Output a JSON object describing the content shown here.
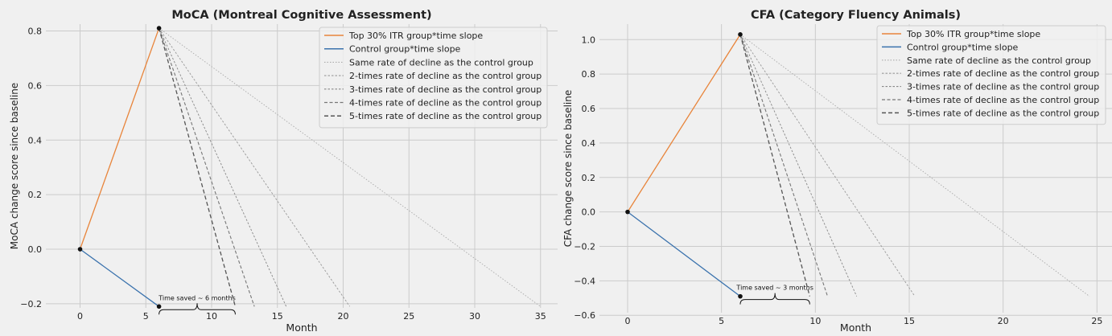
{
  "chart_data": [
    {
      "type": "line",
      "title": "MoCA (Montreal Cognitive Assessment)",
      "xlabel": "Month",
      "ylabel": "MoCA change score since baseline",
      "xlim": [
        -2.6,
        36.3
      ],
      "ylim": [
        -0.215,
        0.825
      ],
      "xticks": [
        0,
        5,
        10,
        15,
        20,
        25,
        30,
        35
      ],
      "xtick_labels": [
        "0",
        "5",
        "10",
        "15",
        "20",
        "25",
        "30",
        "35"
      ],
      "yticks": [
        -0.2,
        0.0,
        0.2,
        0.4,
        0.6,
        0.8
      ],
      "ytick_labels": [
        "−0.2",
        "0.0",
        "0.2",
        "0.4",
        "0.6",
        "0.8"
      ],
      "grid": true,
      "legend_position": "top-right",
      "series": [
        {
          "name": "Top 30% ITR group*time slope",
          "color": "#e8843a",
          "style": "solid",
          "x": [
            0,
            6
          ],
          "y": [
            0,
            0.81
          ]
        },
        {
          "name": "Control group*time slope",
          "color": "#3a72ad",
          "style": "solid",
          "x": [
            0,
            6
          ],
          "y": [
            0,
            -0.21
          ]
        },
        {
          "name": "Same rate of decline as the control group",
          "color": "#aaaaaa",
          "style": "dotted",
          "x": [
            6,
            35
          ],
          "y": [
            0.81,
            -0.21
          ]
        },
        {
          "name": "2-times rate of decline as the control group",
          "color": "#999999",
          "style": "dashed-fine",
          "x": [
            6,
            20.5
          ],
          "y": [
            0.81,
            -0.21
          ]
        },
        {
          "name": "3-times rate of decline as the control group",
          "color": "#888888",
          "style": "dashed-fine",
          "x": [
            6,
            15.67
          ],
          "y": [
            0.81,
            -0.21
          ]
        },
        {
          "name": "4-times rate of decline as the control group",
          "color": "#777777",
          "style": "dashed",
          "x": [
            6,
            13.25
          ],
          "y": [
            0.81,
            -0.21
          ]
        },
        {
          "name": "5-times rate of decline as the control group",
          "color": "#555555",
          "style": "dashed-heavy",
          "x": [
            6,
            11.8
          ],
          "y": [
            0.81,
            -0.21
          ]
        }
      ],
      "points": [
        {
          "x": 0,
          "y": 0
        },
        {
          "x": 6,
          "y": 0.81
        },
        {
          "x": 6,
          "y": -0.21
        }
      ],
      "annotation": {
        "text": "Time saved ~ 6 months",
        "x_start": 6,
        "x_end": 11.8
      }
    },
    {
      "type": "line",
      "title": "CFA (Category Fluency Animals)",
      "xlabel": "Month",
      "ylabel": "CFA change score since baseline",
      "xlim": [
        -1.5,
        25.8
      ],
      "ylim": [
        -0.585,
        1.09
      ],
      "xticks": [
        0,
        5,
        10,
        15,
        20,
        25
      ],
      "xtick_labels": [
        "0",
        "5",
        "10",
        "15",
        "20",
        "25"
      ],
      "yticks": [
        -0.6,
        -0.4,
        -0.2,
        0.0,
        0.2,
        0.4,
        0.6,
        0.8,
        1.0
      ],
      "ytick_labels": [
        "−0.6",
        "−0.4",
        "−0.2",
        "0.0",
        "0.2",
        "0.4",
        "0.6",
        "0.8",
        "1.0"
      ],
      "grid": true,
      "legend_position": "top-right",
      "series": [
        {
          "name": "Top 30% ITR group*time slope",
          "color": "#e8843a",
          "style": "solid",
          "x": [
            0,
            6
          ],
          "y": [
            0,
            1.03
          ]
        },
        {
          "name": "Control group*time slope",
          "color": "#3a72ad",
          "style": "solid",
          "x": [
            0,
            6
          ],
          "y": [
            0,
            -0.49
          ]
        },
        {
          "name": "Same rate of decline as the control group",
          "color": "#aaaaaa",
          "style": "dotted",
          "x": [
            6,
            24.6
          ],
          "y": [
            1.03,
            -0.49
          ]
        },
        {
          "name": "2-times rate of decline as the control group",
          "color": "#999999",
          "style": "dashed-fine",
          "x": [
            6,
            15.3
          ],
          "y": [
            1.03,
            -0.49
          ]
        },
        {
          "name": "3-times rate of decline as the control group",
          "color": "#888888",
          "style": "dashed-fine",
          "x": [
            6,
            12.2
          ],
          "y": [
            1.03,
            -0.49
          ]
        },
        {
          "name": "4-times rate of decline as the control group",
          "color": "#777777",
          "style": "dashed",
          "x": [
            6,
            10.65
          ],
          "y": [
            1.03,
            -0.49
          ]
        },
        {
          "name": "5-times rate of decline as the control group",
          "color": "#555555",
          "style": "dashed-heavy",
          "x": [
            6,
            9.7
          ],
          "y": [
            1.03,
            -0.49
          ]
        }
      ],
      "points": [
        {
          "x": 0,
          "y": 0
        },
        {
          "x": 6,
          "y": 1.03
        },
        {
          "x": 6,
          "y": -0.49
        }
      ],
      "annotation": {
        "text": "Time saved ~ 3 months",
        "x_start": 6,
        "x_end": 9.7
      }
    }
  ]
}
